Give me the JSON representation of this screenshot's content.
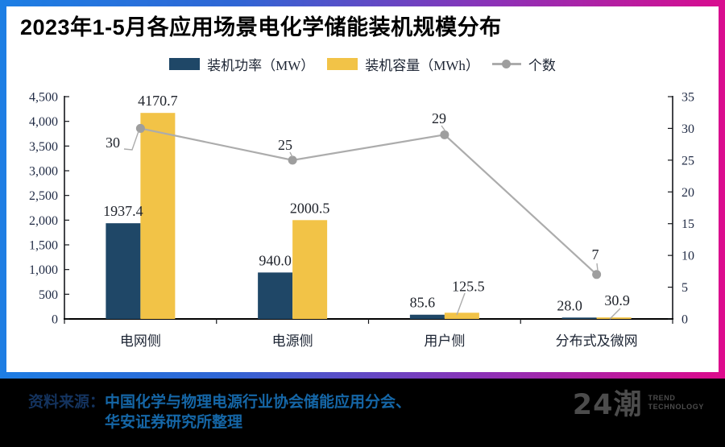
{
  "chart_data": {
    "type": "combo-bar-line",
    "title": "2023年1-5月各应用场景电化学储能装机规模分布",
    "categories": [
      "电网侧",
      "电源侧",
      "用户侧",
      "分布式及微网"
    ],
    "series": [
      {
        "name": "装机功率（MW）",
        "type": "bar",
        "axis": "left",
        "color": "#1F4767",
        "values": [
          1937.4,
          940.0,
          85.6,
          28.0
        ],
        "labels": [
          "1937.4",
          "940.0",
          "85.6",
          "28.0"
        ]
      },
      {
        "name": "装机容量（MWh）",
        "type": "bar",
        "axis": "left",
        "color": "#F2C347",
        "values": [
          4170.7,
          2000.5,
          125.5,
          30.9
        ],
        "labels": [
          "4170.7",
          "2000.5",
          "125.5",
          "30.9"
        ]
      },
      {
        "name": "个数",
        "type": "line",
        "axis": "right",
        "color": "#ACACAC",
        "marker_color": "#9E9E9E",
        "values": [
          30,
          25,
          29,
          7
        ],
        "labels": [
          "30",
          "25",
          "29",
          "7"
        ]
      }
    ],
    "left_axis": {
      "min": 0,
      "max": 4500,
      "step": 500,
      "tick_labels": [
        "0",
        "500",
        "1,000",
        "1,500",
        "2,000",
        "2,500",
        "3,000",
        "3,500",
        "4,000",
        "4,500"
      ]
    },
    "right_axis": {
      "min": 0,
      "max": 35,
      "step": 5,
      "tick_labels": [
        "0",
        "5",
        "10",
        "15",
        "20",
        "25",
        "30",
        "35"
      ]
    },
    "legend_position": "top",
    "grid": false
  },
  "footer": {
    "source_label": "资料来源：",
    "source_line1": "中国化学与物理电源行业协会储能应用分会、",
    "source_line2": "华安证券研究所整理",
    "logo_text": "24潮",
    "logo_sub1": "TREND",
    "logo_sub2": "TECHNOLOGY"
  },
  "colors": {
    "border_gradient_start": "#1D7FE4",
    "border_gradient_end": "#DE0A8C",
    "footer_background": "#000000",
    "source_label_color": "#14335E",
    "source_text_color": "#1566A6",
    "logo_color": "#4C4C4C",
    "bar_power": "#1F4767",
    "bar_capacity": "#F2C347",
    "count_line": "#ACACAC"
  }
}
